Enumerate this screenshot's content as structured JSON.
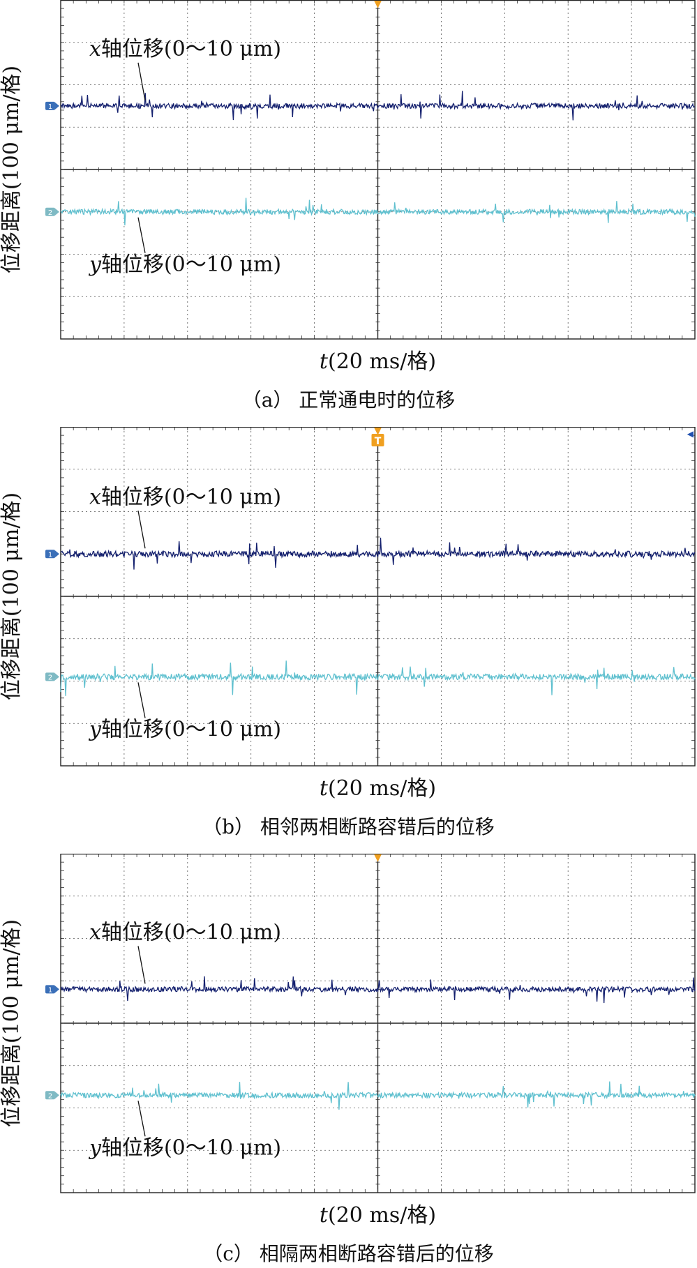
{
  "chart_data": [
    {
      "type": "line",
      "caption": "（a） 正常通电时的位移",
      "ylabel": "位移距离(100 μm/格)",
      "xlabel_var": "t",
      "xlabel_unit": "(20 ms/格)",
      "grid": true,
      "divisions": {
        "x": 10,
        "y": 8
      },
      "trigger_marker": "▼",
      "trigger_label": "",
      "right_marker": "",
      "series": [
        {
          "name": "x轴位移(0～10 μm)",
          "var": "x",
          "rest": "轴位移(0～10 μm)",
          "channel": "1",
          "color": "#14206e",
          "level_div": 2.5,
          "noise_div": 0.06,
          "spike_div": 0.3,
          "seed": 11
        },
        {
          "name": "y轴位移(0～10 μm)",
          "var": "y",
          "rest": "轴位移(0～10 μm)",
          "channel": "2",
          "color": "#5fc0cf",
          "level_div": 5.0,
          "noise_div": 0.06,
          "spike_div": 0.3,
          "seed": 23
        }
      ]
    },
    {
      "type": "line",
      "caption": "（b） 相邻两相断路容错后的位移",
      "ylabel": "位移距离(100 μm/格)",
      "xlabel_var": "t",
      "xlabel_unit": "(20 ms/格)",
      "grid": true,
      "divisions": {
        "x": 10,
        "y": 8
      },
      "trigger_marker": "▼",
      "trigger_label": "T",
      "right_marker": "◀",
      "series": [
        {
          "name": "x轴位移(0～10 μm)",
          "var": "x",
          "rest": "轴位移(0～10 μm)",
          "channel": "1",
          "color": "#14206e",
          "level_div": 3.0,
          "noise_div": 0.07,
          "spike_div": 0.35,
          "seed": 37
        },
        {
          "name": "y轴位移(0～10 μm)",
          "var": "y",
          "rest": "轴位移(0～10 μm)",
          "channel": "2",
          "color": "#5fc0cf",
          "level_div": 5.9,
          "noise_div": 0.07,
          "spike_div": 0.5,
          "seed": 41
        }
      ]
    },
    {
      "type": "line",
      "caption": "（c） 相隔两相断路容错后的位移",
      "ylabel": "位移距离(100 μm/格)",
      "xlabel_var": "t",
      "xlabel_unit": "(20 ms/格)",
      "grid": true,
      "divisions": {
        "x": 10,
        "y": 8
      },
      "trigger_marker": "▼",
      "trigger_label": "",
      "right_marker": "",
      "series": [
        {
          "name": "x轴位移(0～10 μm)",
          "var": "x",
          "rest": "轴位移(0～10 μm)",
          "channel": "1",
          "color": "#14206e",
          "level_div": 3.2,
          "noise_div": 0.06,
          "spike_div": 0.3,
          "seed": 53
        },
        {
          "name": "y轴位移(0～10 μm)",
          "var": "y",
          "rest": "轴位移(0～10 μm)",
          "channel": "2",
          "color": "#5fc0cf",
          "level_div": 5.7,
          "noise_div": 0.06,
          "spike_div": 0.3,
          "seed": 67
        }
      ]
    }
  ]
}
